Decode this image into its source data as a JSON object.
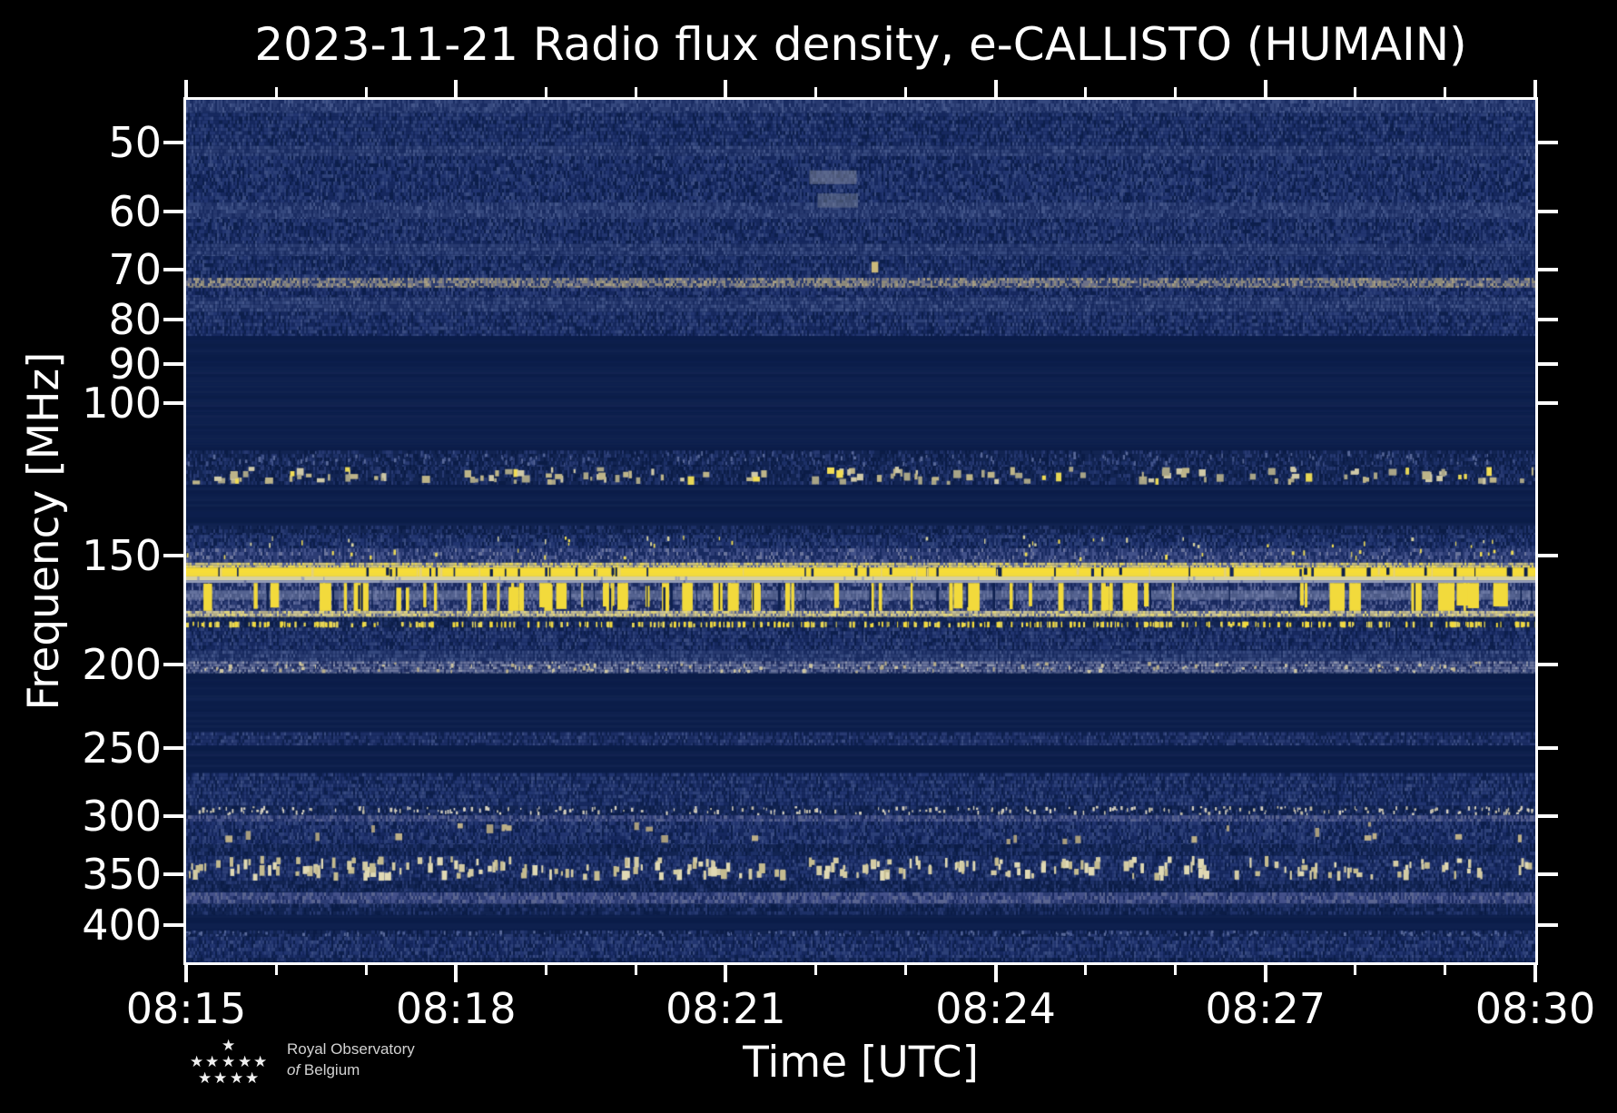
{
  "title": "2023-11-21 Radio flux density, e-CALLISTO (HUMAIN)",
  "axes": {
    "x_label": "Time [UTC]",
    "y_label": "Frequency [MHz]",
    "x_ticks_major": [
      "08:15",
      "08:18",
      "08:21",
      "08:24",
      "08:27",
      "08:30"
    ],
    "x_total_minutes": 15,
    "x_minutes_per_major": 3,
    "y_ticks": [
      50,
      60,
      70,
      80,
      90,
      100,
      150,
      200,
      250,
      300,
      350,
      400
    ],
    "y_scale": "log",
    "y_range_mhz": [
      44.6,
      442
    ]
  },
  "logo": {
    "star_glyph": "★",
    "line1": "Royal Observatory",
    "line2_italic": "of",
    "line2_rest": " Belgium"
  },
  "chart_data": {
    "type": "heatmap",
    "title": "2023-11-21 Radio flux density, e-CALLISTO (HUMAIN)",
    "xlabel": "Time [UTC]",
    "ylabel": "Frequency [MHz]",
    "x_ticks": [
      "08:15",
      "08:18",
      "08:21",
      "08:24",
      "08:27",
      "08:30"
    ],
    "y_ticks": [
      50,
      60,
      70,
      80,
      90,
      100,
      150,
      200,
      250,
      300,
      350,
      400
    ],
    "ylim": [
      44.6,
      442
    ],
    "yscale": "log",
    "xlim_utc": [
      "08:15",
      "08:30"
    ],
    "colors": {
      "base": "#0c1e4b",
      "bright_line": "#f6dd38",
      "cream": "#d3cba4",
      "slate": "#5a6590",
      "background_navy": "#16285e"
    },
    "palettes": {
      "navA": [
        [
          "#16285e",
          5
        ],
        [
          "#223570",
          4
        ],
        [
          "#2d4078",
          3
        ],
        [
          "#0d1f4c",
          3
        ],
        [
          "#3a4c82",
          1
        ]
      ],
      "navB": [
        [
          "#122452",
          6
        ],
        [
          "#1d3067",
          3
        ],
        [
          "#283a72",
          2
        ],
        [
          "#0b1c46",
          3
        ]
      ],
      "navBr": [
        [
          "#27396f",
          4
        ],
        [
          "#35487e",
          3
        ],
        [
          "#1a2c62",
          3
        ],
        [
          "#44568a",
          1
        ]
      ],
      "tanline": [
        [
          "#8d8a7b",
          3
        ],
        [
          "#6e7288",
          3
        ],
        [
          "#2c3c6e",
          3
        ],
        [
          "#a99f85",
          1
        ]
      ],
      "tansub": [
        [
          "#6e7288",
          3
        ],
        [
          "#8d8a7b",
          2
        ],
        [
          "#2c3c6e",
          4
        ]
      ],
      "slGray": [
        [
          "#6b759c",
          3
        ],
        [
          "#57628f",
          3
        ],
        [
          "#3a4a7e",
          2
        ],
        [
          "#8d94ac",
          1
        ],
        [
          "#222f62",
          2
        ]
      ],
      "cream": [
        [
          "#c9c296",
          3
        ],
        [
          "#b1ab85",
          2
        ],
        [
          "#e3d77b",
          2
        ],
        [
          "#5a6590",
          2
        ],
        [
          "#8a8f97",
          1
        ]
      ],
      "crEdge": [
        [
          "#cbc07f",
          4
        ],
        [
          "#a8a687",
          2
        ],
        [
          "#5c6896",
          2
        ],
        [
          "#e8d757",
          2
        ]
      ],
      "barsbg": [
        [
          "#2c3c74",
          3
        ],
        [
          "#1a2a60",
          3
        ],
        [
          "#4d5a8e",
          2
        ],
        [
          "#5f6b9c",
          1
        ]
      ],
      "slBand": [
        [
          "#44518a",
          3
        ],
        [
          "#2c3c74",
          3
        ],
        [
          "#5a6590",
          2
        ],
        [
          "#1a2a60",
          1
        ]
      ],
      "preline": [
        [
          "#2c3c74",
          4
        ],
        [
          "#43528a",
          3
        ],
        [
          "#182a60",
          3
        ],
        [
          "#6b759c",
          1
        ]
      ],
      "spkrow": [
        [
          "#1b2d64",
          5
        ],
        [
          "#283a72",
          3
        ],
        [
          "#0e204e",
          3
        ],
        [
          "#3a4c82",
          1
        ]
      ]
    },
    "bands": [
      {
        "name": "top-edge-bright",
        "f": [
          44.6,
          46.2
        ],
        "style": "noise",
        "palette": "navBr"
      },
      {
        "name": "vhf-noise",
        "f": [
          46.2,
          50.4
        ],
        "style": "noise",
        "palette": "navA"
      },
      {
        "name": "50mhz-line",
        "f": [
          50.4,
          51.8
        ],
        "style": "noise",
        "palette": "navBr"
      },
      {
        "name": "vhf-noise",
        "f": [
          51.8,
          58.6
        ],
        "style": "noise",
        "palette": "navA"
      },
      {
        "name": "60mhz-line",
        "f": [
          58.6,
          61.2
        ],
        "style": "noise",
        "palette": "navBr"
      },
      {
        "name": "vhf-noise",
        "f": [
          61.2,
          65.4
        ],
        "style": "noise",
        "palette": "navA"
      },
      {
        "name": "66mhz-line",
        "f": [
          65.4,
          67.6
        ],
        "style": "noise",
        "palette": "navBr"
      },
      {
        "name": "vhf-noise",
        "f": [
          67.6,
          71.6
        ],
        "style": "noise",
        "palette": "navA"
      },
      {
        "name": "73mhz-tan-line",
        "f": [
          71.6,
          73.5
        ],
        "style": "noise",
        "palette": "tanline",
        "cell": [
          2,
          3
        ]
      },
      {
        "name": "vhf-noise",
        "f": [
          73.5,
          75.4
        ],
        "style": "noise",
        "palette": "navA"
      },
      {
        "name": "77mhz-line",
        "f": [
          75.4,
          78.4
        ],
        "style": "noise",
        "palette": "navBr"
      },
      {
        "name": "vhf-noise",
        "f": [
          78.4,
          83.6
        ],
        "style": "noise",
        "palette": "navA"
      },
      {
        "name": "quiet-fm-gap",
        "f": [
          83.6,
          113.3
        ],
        "style": "smooth",
        "color": "#0c1e4b"
      },
      {
        "name": "airband-upper",
        "f": [
          113.3,
          118.3
        ],
        "style": "noise",
        "palette": "navB",
        "overlays": [
          {
            "type": "speckle",
            "color": [
              "#41538a",
              "#5a6a9a"
            ],
            "count": 180,
            "w": [
              1,
              3
            ],
            "h": [
              3,
              6
            ]
          }
        ]
      },
      {
        "name": "airband-speckles",
        "f": [
          118.3,
          124.2
        ],
        "style": "noise",
        "palette": "navB",
        "overlays": [
          {
            "type": "speckle",
            "color": [
              "#cfc9a8",
              "#bdb489",
              "#a8a487"
            ],
            "count": 130,
            "w": [
              2,
              9
            ],
            "h": [
              4,
              9
            ]
          },
          {
            "type": "speckle",
            "color": [
              "#f2dd55",
              "#e8d757"
            ],
            "count": 16,
            "w": [
              3,
              8
            ],
            "h": [
              5,
              10
            ]
          }
        ]
      },
      {
        "name": "quiet",
        "f": [
          124.2,
          138.4
        ],
        "style": "smooth",
        "color": "#0c1e4b"
      },
      {
        "name": "dim-noise",
        "f": [
          138.4,
          141.8
        ],
        "style": "noise",
        "palette": "navB"
      },
      {
        "name": "145mhz-band",
        "f": [
          141.8,
          147.0
        ],
        "style": "noise",
        "palette": "navA",
        "overlays": [
          {
            "type": "speckle",
            "color": [
              "#d8d3a0",
              "#f0dc52"
            ],
            "count": 40,
            "w": [
              1,
              3
            ],
            "h": [
              3,
              6
            ]
          }
        ]
      },
      {
        "name": "150mhz-band",
        "f": [
          147.0,
          152.7
        ],
        "style": "noise",
        "palette": "preline",
        "overlays": [
          {
            "type": "speckle",
            "color": [
              "#f0dc52",
              "#e8d757"
            ],
            "count": 25,
            "w": [
              1,
              3
            ],
            "h": [
              3,
              6
            ]
          }
        ]
      },
      {
        "name": "cream-edge",
        "f": [
          152.7,
          154.7
        ],
        "style": "noise",
        "palette": "crEdge",
        "cell": [
          2,
          3
        ]
      },
      {
        "name": "bright-yellow-line-156mhz",
        "f": [
          154.7,
          158.4
        ],
        "style": "smooth",
        "color": "#f6dd38",
        "overlays": [
          {
            "type": "speckle",
            "color": [
              "#13265c",
              "#0d1f4c"
            ],
            "count": 50,
            "w": [
              1,
              4
            ],
            "h": "full"
          },
          {
            "type": "speckle",
            "color": "#e6d277",
            "count": 20,
            "w": [
              1,
              3
            ],
            "h": "full"
          }
        ]
      },
      {
        "name": "pale-underline",
        "f": [
          158.4,
          160.0
        ],
        "style": "smooth",
        "color": "#ded8a6",
        "overlays": [
          {
            "type": "speckle",
            "color": "#9aa0b5",
            "count": 25,
            "w": [
              1,
              3
            ],
            "h": "full"
          }
        ]
      },
      {
        "name": "grayblue-line",
        "f": [
          160.0,
          161.2
        ],
        "style": "smooth",
        "color": "#97a0bb",
        "overlays": [
          {
            "type": "speckle",
            "color": "#5c6896",
            "count": 20,
            "w": [
              1,
              3
            ],
            "h": "full"
          }
        ]
      },
      {
        "name": "pager-bars-band-165mhz",
        "f": [
          161.2,
          173.6
        ],
        "style": "noise",
        "palette": "barsbg",
        "strips": [
          {
            "f": [
              164.4,
              168.5
            ],
            "color": "#7e89ae",
            "alpha": 0.5
          }
        ],
        "overlays": [
          {
            "type": "speckle",
            "color": "#f2da3c",
            "count": 46,
            "w": [
              2,
              6
            ],
            "h": "full"
          },
          {
            "type": "speckle",
            "color": "#f2da3c",
            "count": 26,
            "w": [
              8,
              19
            ],
            "h": "full"
          },
          {
            "type": "speckle",
            "color": "#0e2050",
            "count": 30,
            "w": [
              1,
              3
            ],
            "h": "full"
          }
        ]
      },
      {
        "name": "cream-speckle-line-175mhz",
        "f": [
          173.6,
          176.5
        ],
        "style": "noise",
        "palette": "cream",
        "cell": [
          2,
          3
        ]
      },
      {
        "name": "dim-noise",
        "f": [
          176.5,
          178.6
        ],
        "style": "noise",
        "palette": "navB"
      },
      {
        "name": "yellow-dash-row-180mhz",
        "f": [
          178.6,
          181.5
        ],
        "style": "noise",
        "palette": "navB",
        "overlays": [
          {
            "type": "speckle",
            "color": [
              "#f2da3c",
              "#e8d757"
            ],
            "count": 330,
            "w": [
              1,
              3
            ],
            "h": [
              4,
              8
            ]
          }
        ]
      },
      {
        "name": "noise",
        "f": [
          181.5,
          192.9
        ],
        "style": "noise",
        "palette": "navA"
      },
      {
        "name": "200mhz-band-upper",
        "f": [
          192.9,
          198.5
        ],
        "style": "noise",
        "palette": "navBr"
      },
      {
        "name": "200mhz-band-gray",
        "f": [
          198.5,
          205.0
        ],
        "style": "noise",
        "palette": "slGray",
        "cell": [
          2,
          3
        ],
        "overlays": [
          {
            "type": "speckle",
            "color": [
              "#b7ad8a",
              "#cdc5a2"
            ],
            "count": 120,
            "w": [
              1,
              4
            ],
            "h": [
              2,
              5
            ]
          }
        ]
      },
      {
        "name": "quiet",
        "f": [
          205.0,
          239.7
        ],
        "style": "smooth",
        "color": "#0c1e4b"
      },
      {
        "name": "250mhz-band",
        "f": [
          239.7,
          248.4
        ],
        "style": "noise",
        "palette": "spkrow"
      },
      {
        "name": "quiet",
        "f": [
          248.4,
          267.2
        ],
        "style": "smooth",
        "color": "#0c1e4b"
      },
      {
        "name": "noise",
        "f": [
          267.2,
          291.6
        ],
        "style": "noise",
        "palette": "navA"
      },
      {
        "name": "300mhz-fleck-line",
        "f": [
          291.6,
          299.0
        ],
        "style": "noise",
        "palette": "navB",
        "overlays": [
          {
            "type": "speckle",
            "color": [
              "#cfcabb",
              "#bdb8a5",
              "#d8d3c2"
            ],
            "count": 260,
            "w": [
              1,
              3
            ],
            "h": [
              2,
              5
            ]
          }
        ]
      },
      {
        "name": "slate-row",
        "f": [
          299.0,
          304.0
        ],
        "style": "noise",
        "palette": "slBand"
      },
      {
        "name": "noise-with-tan-blobs",
        "f": [
          304.0,
          323.0
        ],
        "style": "noise",
        "palette": "navA",
        "overlays": [
          {
            "type": "speckle",
            "color": [
              "#bdb089",
              "#a89d7e"
            ],
            "count": 26,
            "w": [
              3,
              8
            ],
            "h": [
              5,
              10
            ]
          }
        ]
      },
      {
        "name": "dim-noise",
        "f": [
          323.0,
          333.0
        ],
        "style": "noise",
        "palette": "navB"
      },
      {
        "name": "350mhz-dash-band",
        "f": [
          333.0,
          356.0
        ],
        "style": "noise",
        "palette": "navA",
        "overlays": [
          {
            "type": "speckle",
            "color": [
              "#d3cba4",
              "#c4bb90",
              "#e0d9b4"
            ],
            "count": 240,
            "w": [
              2,
              7
            ],
            "h": [
              5,
              12
            ]
          }
        ]
      },
      {
        "name": "dim-noise",
        "f": [
          356.0,
          367.0
        ],
        "style": "noise",
        "palette": "navB"
      },
      {
        "name": "slate-band-375mhz",
        "f": [
          367.0,
          378.5
        ],
        "style": "noise",
        "palette": "slBand"
      },
      {
        "name": "dim-noise",
        "f": [
          378.5,
          390.0
        ],
        "style": "noise",
        "palette": "navB"
      },
      {
        "name": "quiet-400mhz",
        "f": [
          390.0,
          406.0
        ],
        "style": "smooth",
        "color": "#0c1e4b"
      },
      {
        "name": "fleck-row-410mhz",
        "f": [
          406.0,
          413.0
        ],
        "style": "noise",
        "palette": "navB",
        "overlays": [
          {
            "type": "speckle",
            "color": [
              "#4d5f96",
              "#5a6a9a"
            ],
            "count": 160,
            "w": [
              1,
              3
            ],
            "h": [
              2,
              5
            ]
          }
        ]
      },
      {
        "name": "bottom-noise",
        "f": [
          413.0,
          437.0
        ],
        "style": "noise",
        "palette": "navA"
      },
      {
        "name": "bottom-dark",
        "f": [
          437.0,
          442.0
        ],
        "style": "noise",
        "palette": "navB"
      }
    ],
    "features": [
      {
        "name": "gray-smudge-0821",
        "x": 0.462,
        "w": 0.035,
        "f": [
          53.8,
          55.8
        ],
        "color": "#8a90a2",
        "alpha": 0.5
      },
      {
        "name": "gray-smudge-0822",
        "x": 0.468,
        "w": 0.03,
        "f": [
          57.2,
          59.4
        ],
        "color": "#7d8496",
        "alpha": 0.45
      },
      {
        "name": "tan-point-70mhz",
        "x": 0.508,
        "w": 0.005,
        "f": [
          68.6,
          70.6
        ],
        "color": "#d6c27c",
        "alpha": 0.95
      }
    ]
  }
}
